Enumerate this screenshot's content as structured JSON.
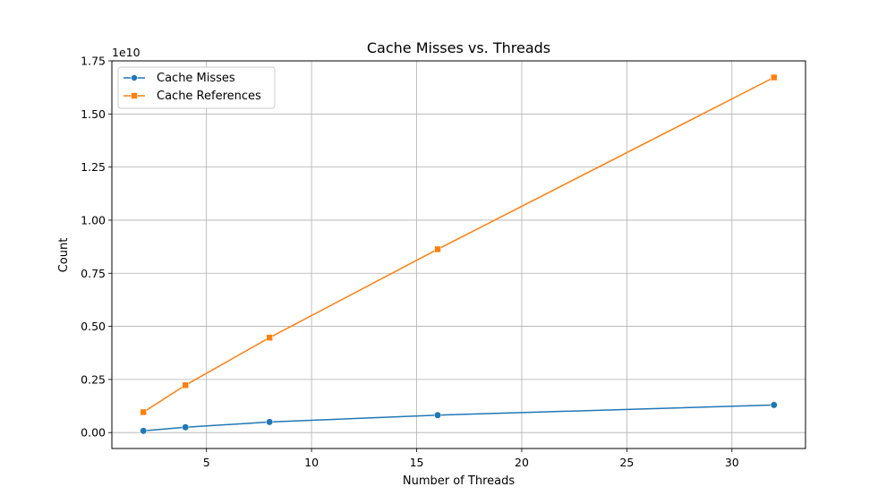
{
  "chart_data": {
    "type": "line",
    "title": "Cache Misses vs. Threads",
    "xlabel": "Number of Threads",
    "ylabel": "Count",
    "y_offset_label": "1e10",
    "x": [
      2,
      4,
      8,
      16,
      32
    ],
    "xlim": [
      0.5,
      33.5
    ],
    "ylim": [
      -0.075,
      1.75
    ],
    "y_scale_factor": 10000000000,
    "x_ticks": [
      5,
      10,
      15,
      20,
      25,
      30
    ],
    "x_tick_labels": [
      "5",
      "10",
      "15",
      "20",
      "25",
      "30"
    ],
    "y_ticks": [
      0.0,
      0.25,
      0.5,
      0.75,
      1.0,
      1.25,
      1.5,
      1.75
    ],
    "y_tick_labels": [
      "0.00",
      "0.25",
      "0.50",
      "0.75",
      "1.00",
      "1.25",
      "1.50",
      "1.75"
    ],
    "grid": true,
    "legend_position": "top-left",
    "series": [
      {
        "name": "Cache Misses",
        "values": [
          0.008,
          0.025,
          0.05,
          0.082,
          0.13
        ],
        "color": "#1f77b4",
        "marker": "circle"
      },
      {
        "name": "Cache References",
        "values": [
          0.096,
          0.223,
          0.447,
          0.863,
          1.672
        ],
        "color": "#ff7f0e",
        "marker": "square"
      }
    ]
  }
}
